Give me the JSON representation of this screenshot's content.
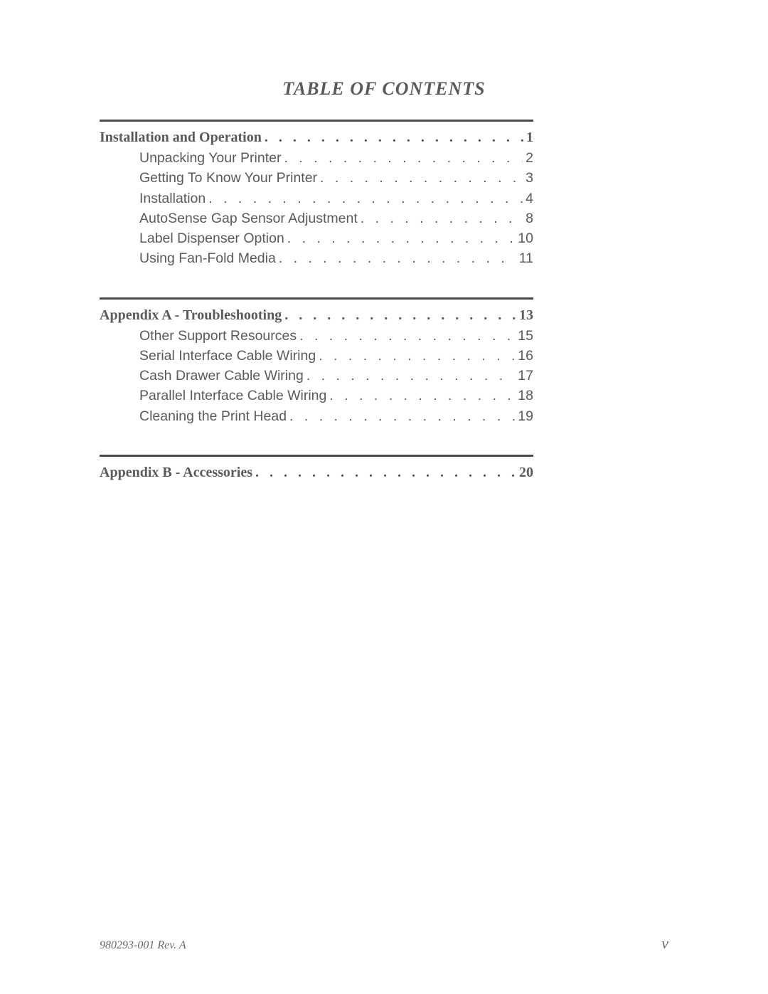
{
  "title": "TABLE OF CONTENTS",
  "sections": [
    {
      "heading": {
        "label": "Installation and Operation",
        "page": "1"
      },
      "items": [
        {
          "label": "Unpacking Your Printer",
          "page": "2"
        },
        {
          "label": "Getting To Know Your Printer",
          "page": "3"
        },
        {
          "label": "Installation",
          "page": "4"
        },
        {
          "label": "AutoSense Gap Sensor Adjustment",
          "page": "8"
        },
        {
          "label": "Label Dispenser Option",
          "page": "10"
        },
        {
          "label": "Using Fan-Fold Media",
          "page": "11"
        }
      ]
    },
    {
      "heading": {
        "label": "Appendix A - Troubleshooting",
        "page": "13"
      },
      "items": [
        {
          "label": "Other Support Resources",
          "page": "15"
        },
        {
          "label": "Serial Interface Cable Wiring",
          "page": "16"
        },
        {
          "label": "Cash Drawer  Cable Wiring",
          "page": "17"
        },
        {
          "label": "Parallel Interface Cable Wiring",
          "page": "18"
        },
        {
          "label": "Cleaning the Print Head",
          "page": "19"
        }
      ]
    },
    {
      "heading": {
        "label": "Appendix B - Accessories",
        "page": "20"
      },
      "items": []
    }
  ],
  "footer": {
    "left": "980293-001 Rev. A",
    "right": "v"
  },
  "style": {
    "text_color": "#5a5a5a",
    "divider_color": "#4a4a4a",
    "title_fontsize": 26,
    "heading_fontsize": 20,
    "sub_fontsize": 19.5,
    "footer_left_fontsize": 16,
    "footer_right_fontsize": 22,
    "background": "#ffffff"
  }
}
